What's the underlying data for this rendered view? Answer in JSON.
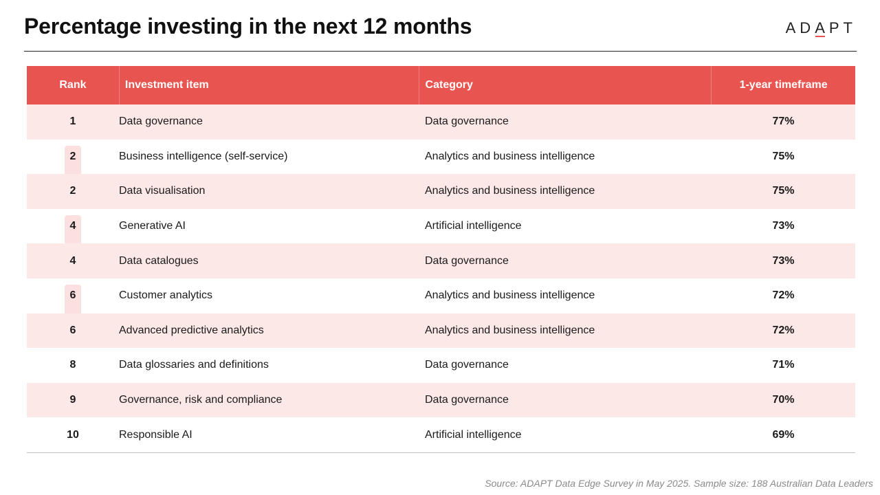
{
  "title": "Percentage investing in the next 12 months",
  "logo": {
    "prefix": "AD",
    "accent": "A",
    "suffix": "PT",
    "accent_color": "#e8534f"
  },
  "colors": {
    "header_bg": "#e85550",
    "alt_row_bg": "#fde8e8",
    "tie_marker": "#f7c6c4"
  },
  "table": {
    "headers": {
      "rank": "Rank",
      "item": "Investment item",
      "category": "Category",
      "timeframe": "1-year timeframe"
    },
    "rows": [
      {
        "rank": "1",
        "item": "Data governance",
        "category": "Data governance",
        "pct": "77%"
      },
      {
        "rank": "2",
        "item": "Business intelligence (self-service)",
        "category": "Analytics and business intelligence",
        "pct": "75%"
      },
      {
        "rank": "2",
        "item": "Data visualisation",
        "category": "Analytics and business intelligence",
        "pct": "75%"
      },
      {
        "rank": "4",
        "item": "Generative AI",
        "category": "Artificial intelligence",
        "pct": "73%"
      },
      {
        "rank": "4",
        "item": "Data catalogues",
        "category": "Data governance",
        "pct": "73%"
      },
      {
        "rank": "6",
        "item": "Customer analytics",
        "category": "Analytics and business intelligence",
        "pct": "72%"
      },
      {
        "rank": "6",
        "item": "Advanced predictive analytics",
        "category": "Analytics and business intelligence",
        "pct": "72%"
      },
      {
        "rank": "8",
        "item": "Data glossaries and definitions",
        "category": "Data governance",
        "pct": "71%"
      },
      {
        "rank": "9",
        "item": "Governance, risk and compliance",
        "category": "Data governance",
        "pct": "70%"
      },
      {
        "rank": "10",
        "item": "Responsible AI",
        "category": "Artificial intelligence",
        "pct": "69%"
      }
    ]
  },
  "source": "Source: ADAPT Data Edge Survey in May 2025. Sample size: 188 Australian Data Leaders"
}
